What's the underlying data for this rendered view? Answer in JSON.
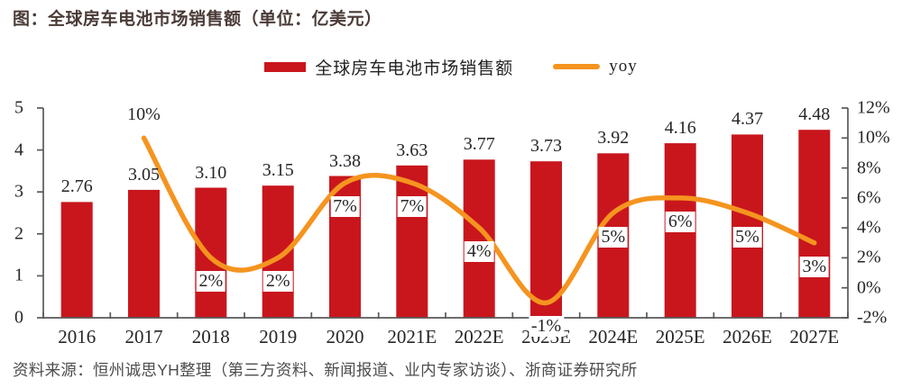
{
  "title": "图：全球房车电池市场销售额（单位：亿美元）",
  "legend": {
    "bar_label": "全球房车电池市场销售额",
    "line_label": "yoy"
  },
  "source": "资料来源：恒州诚思YH整理（第三方资料、新闻报道、业内专家访谈）、浙商证券研究所",
  "colors": {
    "bar": "#C9161D",
    "line": "#F5941F",
    "axis": "#595959",
    "text": "#262626"
  },
  "chart_data": {
    "type": "bar",
    "subtype": "combo-bar-line",
    "title": "全球房车电池市场销售额（单位：亿美元）",
    "categories": [
      "2016",
      "2017",
      "2018",
      "2019",
      "2020",
      "2021E",
      "2022E",
      "2023E",
      "2024E",
      "2025E",
      "2026E",
      "2027E"
    ],
    "series": [
      {
        "name": "全球房车电池市场销售额",
        "type": "bar",
        "axis": "left",
        "values": [
          2.76,
          3.05,
          3.1,
          3.15,
          3.38,
          3.63,
          3.77,
          3.73,
          3.92,
          4.16,
          4.37,
          4.48
        ],
        "labels": [
          "2.76",
          "3.05",
          "3.10",
          "3.15",
          "3.38",
          "3.63",
          "3.77",
          "3.73",
          "3.92",
          "4.16",
          "4.37",
          "4.48"
        ]
      },
      {
        "name": "yoy",
        "type": "line",
        "axis": "right",
        "smooth": true,
        "values": [
          null,
          10,
          2,
          2,
          7,
          7,
          4,
          -1,
          5,
          6,
          5,
          3
        ],
        "labels": [
          null,
          "10%",
          "2%",
          "2%",
          "7%",
          "7%",
          "4%",
          "-1%",
          "5%",
          "6%",
          "5%",
          "3%"
        ]
      }
    ],
    "left_axis": {
      "min": 0,
      "max": 5,
      "tick_values": [
        0,
        1,
        2,
        3,
        4,
        5
      ],
      "ticks": [
        "0",
        "1",
        "2",
        "3",
        "4",
        "5"
      ]
    },
    "right_axis": {
      "min": -2,
      "max": 12,
      "tick_values": [
        -2,
        0,
        2,
        4,
        6,
        8,
        10,
        12
      ],
      "ticks": [
        "-2%",
        "0%",
        "2%",
        "4%",
        "6%",
        "8%",
        "10%",
        "12%"
      ]
    },
    "grid": false,
    "legend_position": "top-center"
  }
}
